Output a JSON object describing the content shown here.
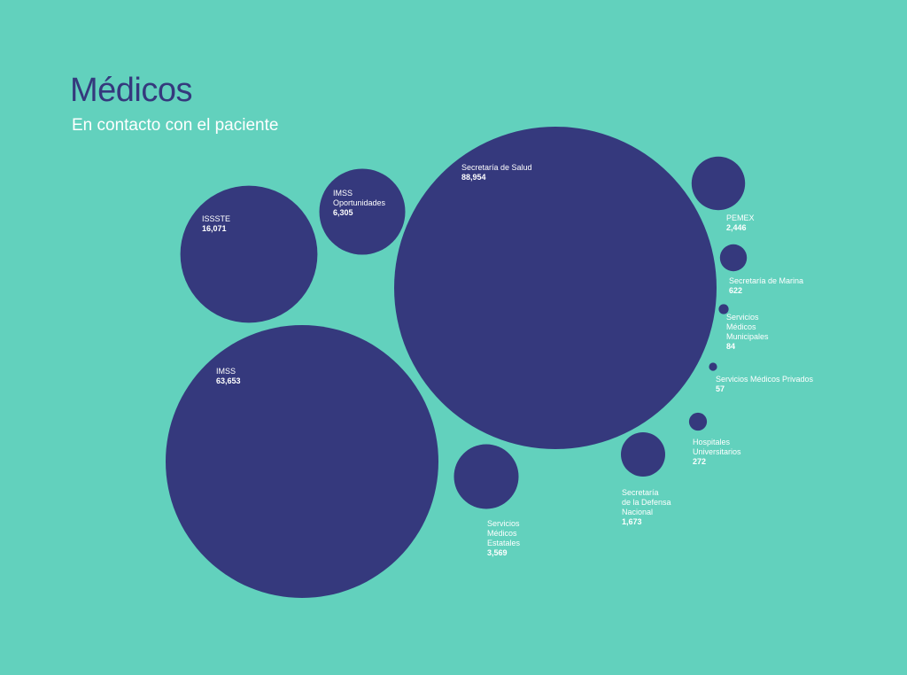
{
  "title": "Médicos",
  "subtitle": "En contacto con el paciente",
  "colors": {
    "background": "#62d1bd",
    "bubble": "#35397d",
    "title": "#35397d",
    "label": "#ffffff"
  },
  "chart_data": {
    "type": "bubble",
    "title": "Médicos",
    "subtitle": "En contacto con el paciente",
    "categories": [
      "Secretaría de Salud",
      "IMSS",
      "ISSSTE",
      "IMSS Oportunidades",
      "Servicios Médicos Estatales",
      "PEMEX",
      "Secretaría de la Defensa Nacional",
      "Secretaría de Marina",
      "Hospitales Universitarios",
      "Servicios Médicos Municipales",
      "Servicios Médicos Privados"
    ],
    "values": [
      88954,
      63653,
      16071,
      6305,
      3569,
      2446,
      1673,
      622,
      272,
      84,
      57
    ],
    "labels": [
      {
        "name": "Secretaría de Salud",
        "value": "88,954"
      },
      {
        "name": "IMSS",
        "value": "63,653"
      },
      {
        "name": "ISSSTE",
        "value": "16,071"
      },
      {
        "name": "IMSS\nOportunidades",
        "value": "6,305"
      },
      {
        "name": "Servicios\nMédicos\nEstatales",
        "value": "3,569"
      },
      {
        "name": "PEMEX",
        "value": "2,446"
      },
      {
        "name": "Secretaría\nde la Defensa\nNacional",
        "value": "1,673"
      },
      {
        "name": "Secretaría de Marina",
        "value": "622"
      },
      {
        "name": "Hospitales\nUniversitarios",
        "value": "272"
      },
      {
        "name": "Servicios\nMédicos\nMunicipales",
        "value": "84"
      },
      {
        "name": "Servicios Médicos Privados",
        "value": "57"
      }
    ]
  }
}
